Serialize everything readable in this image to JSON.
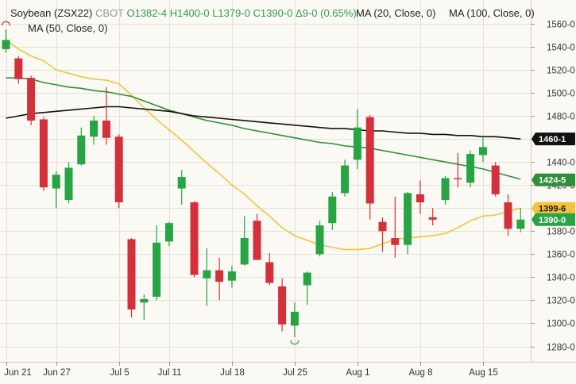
{
  "header": {
    "symbol": "Soybean (ZSX22)",
    "exchange": "CBOT",
    "open": "O1382-4",
    "high": "H1400-0",
    "low": "L1379-0",
    "close": "C1390-0",
    "change": "Δ9-0 (0.65%)",
    "ma20_label": "MA (20, Close, 0)",
    "ma100_label": "MA (100, Close, 0)",
    "ma50_label": "MA (50, Close, 0)"
  },
  "colors": {
    "up": "#27a444",
    "down": "#d3303a",
    "ma20": "#f2c43c",
    "ma50": "#2f8f3a",
    "ma100": "#111111",
    "grid": "#e3e0d8",
    "background": "#fbf9f4"
  },
  "chart_data": {
    "type": "candlestick",
    "y_ticks": [
      "1560-0",
      "1540-0",
      "1520-0",
      "1500-0",
      "1480-0",
      "1460-0",
      "1440-0",
      "1420-0",
      "1400-0",
      "1380-0",
      "1360-0",
      "1340-0",
      "1320-0",
      "1300-0",
      "1280-0"
    ],
    "y_tick_values": [
      1560,
      1540,
      1520,
      1500,
      1480,
      1460,
      1440,
      1420,
      1400,
      1380,
      1360,
      1340,
      1320,
      1300,
      1280
    ],
    "ylim": [
      1268,
      1578
    ],
    "x_labels": [
      {
        "label": "Jun 21",
        "index": 0
      },
      {
        "label": "Jun 27",
        "index": 4
      },
      {
        "label": "Jul 5",
        "index": 9
      },
      {
        "label": "Jul 11",
        "index": 13
      },
      {
        "label": "Jul 18",
        "index": 18
      },
      {
        "label": "Jul 25",
        "index": 23
      },
      {
        "label": "Aug 1",
        "index": 28
      },
      {
        "label": "Aug 8",
        "index": 33
      },
      {
        "label": "Aug 15",
        "index": 38
      }
    ],
    "candles": [
      {
        "o": 1538,
        "h": 1555,
        "l": 1535,
        "c": 1546
      },
      {
        "o": 1530,
        "h": 1532,
        "l": 1508,
        "c": 1512
      },
      {
        "o": 1513,
        "h": 1515,
        "l": 1472,
        "c": 1476
      },
      {
        "o": 1477,
        "h": 1479,
        "l": 1415,
        "c": 1418
      },
      {
        "o": 1417,
        "h": 1432,
        "l": 1400,
        "c": 1429
      },
      {
        "o": 1407,
        "h": 1440,
        "l": 1404,
        "c": 1435
      },
      {
        "o": 1438,
        "h": 1470,
        "l": 1437,
        "c": 1463
      },
      {
        "o": 1462,
        "h": 1480,
        "l": 1455,
        "c": 1476
      },
      {
        "o": 1476,
        "h": 1505,
        "l": 1455,
        "c": 1461
      },
      {
        "o": 1462,
        "h": 1464,
        "l": 1400,
        "c": 1405
      },
      {
        "o": 1373,
        "h": 1374,
        "l": 1305,
        "c": 1312
      },
      {
        "o": 1318,
        "h": 1325,
        "l": 1303,
        "c": 1321
      },
      {
        "o": 1323,
        "h": 1385,
        "l": 1320,
        "c": 1370
      },
      {
        "o": 1371,
        "h": 1388,
        "l": 1367,
        "c": 1387
      },
      {
        "o": 1417,
        "h": 1433,
        "l": 1403,
        "c": 1427
      },
      {
        "o": 1405,
        "h": 1406,
        "l": 1340,
        "c": 1342
      },
      {
        "o": 1339,
        "h": 1365,
        "l": 1315,
        "c": 1346
      },
      {
        "o": 1346,
        "h": 1357,
        "l": 1320,
        "c": 1336
      },
      {
        "o": 1337,
        "h": 1350,
        "l": 1331,
        "c": 1345
      },
      {
        "o": 1351,
        "h": 1393,
        "l": 1350,
        "c": 1374
      },
      {
        "o": 1389,
        "h": 1395,
        "l": 1355,
        "c": 1355
      },
      {
        "o": 1353,
        "h": 1361,
        "l": 1333,
        "c": 1335
      },
      {
        "o": 1332,
        "h": 1339,
        "l": 1293,
        "c": 1299
      },
      {
        "o": 1298,
        "h": 1318,
        "l": 1288,
        "c": 1310
      },
      {
        "o": 1333,
        "h": 1345,
        "l": 1316,
        "c": 1344
      },
      {
        "o": 1360,
        "h": 1389,
        "l": 1358,
        "c": 1385
      },
      {
        "o": 1387,
        "h": 1414,
        "l": 1381,
        "c": 1410
      },
      {
        "o": 1413,
        "h": 1442,
        "l": 1410,
        "c": 1437
      },
      {
        "o": 1442,
        "h": 1486,
        "l": 1434,
        "c": 1470
      },
      {
        "o": 1479,
        "h": 1481,
        "l": 1390,
        "c": 1404
      },
      {
        "o": 1388,
        "h": 1392,
        "l": 1362,
        "c": 1380
      },
      {
        "o": 1374,
        "h": 1410,
        "l": 1357,
        "c": 1368
      },
      {
        "o": 1368,
        "h": 1414,
        "l": 1360,
        "c": 1413
      },
      {
        "o": 1412,
        "h": 1424,
        "l": 1395,
        "c": 1405
      },
      {
        "o": 1392,
        "h": 1400,
        "l": 1385,
        "c": 1390
      },
      {
        "o": 1407,
        "h": 1428,
        "l": 1403,
        "c": 1426
      },
      {
        "o": 1426,
        "h": 1448,
        "l": 1418,
        "c": 1425
      },
      {
        "o": 1422,
        "h": 1450,
        "l": 1418,
        "c": 1447
      },
      {
        "o": 1446,
        "h": 1461,
        "l": 1440,
        "c": 1453
      },
      {
        "o": 1437,
        "h": 1440,
        "l": 1410,
        "c": 1412
      },
      {
        "o": 1405,
        "h": 1412,
        "l": 1376,
        "c": 1382
      },
      {
        "o": 1382,
        "h": 1400,
        "l": 1379,
        "c": 1390
      }
    ],
    "series": [
      {
        "name": "MA (20, Close, 0)",
        "color_key": "ma20",
        "values": [
          1546,
          1538,
          1532,
          1528,
          1520,
          1517,
          1514,
          1512,
          1511,
          1508,
          1498,
          1487,
          1477,
          1468,
          1459,
          1449,
          1439,
          1430,
          1420,
          1412,
          1402,
          1393,
          1383,
          1376,
          1372,
          1368,
          1366,
          1364,
          1364,
          1365,
          1369,
          1373,
          1374,
          1375,
          1376,
          1378,
          1383,
          1389,
          1393,
          1394,
          1397,
          1400
        ]
      },
      {
        "name": "MA (50, Close, 0)",
        "color_key": "ma50",
        "values": [
          1513,
          1513,
          1512,
          1509,
          1507,
          1505,
          1504,
          1502,
          1501,
          1499,
          1497,
          1493,
          1489,
          1485,
          1482,
          1479,
          1476,
          1474,
          1472,
          1469,
          1467,
          1465,
          1463,
          1461,
          1459,
          1457,
          1456,
          1454,
          1453,
          1452,
          1450,
          1448,
          1446,
          1444,
          1442,
          1440,
          1438,
          1436,
          1434,
          1431,
          1428,
          1425
        ]
      },
      {
        "name": "MA (100, Close, 0)",
        "color_key": "ma100",
        "values": [
          1478,
          1480,
          1482,
          1483,
          1484,
          1485,
          1486,
          1487,
          1488,
          1488,
          1487,
          1486,
          1485,
          1484,
          1482,
          1480,
          1479,
          1478,
          1477,
          1476,
          1475,
          1474,
          1473,
          1472,
          1471,
          1470,
          1469,
          1469,
          1468,
          1467,
          1467,
          1466,
          1465,
          1465,
          1464,
          1464,
          1463,
          1463,
          1462,
          1462,
          1461,
          1460
        ]
      }
    ],
    "last_value_tags": [
      {
        "label": "1460-1",
        "value": 1460,
        "color_key": "ma100"
      },
      {
        "label": "1424-5",
        "value": 1424.5,
        "color_key": "ma50"
      },
      {
        "label": "1399-6",
        "value": 1399.75,
        "color_key": "ma20"
      },
      {
        "label": "1390-0",
        "value": 1390,
        "color_key": "up"
      }
    ],
    "markers": [
      {
        "type": "cap",
        "index": 0,
        "position": "above"
      },
      {
        "type": "cup",
        "index": 23,
        "position": "below"
      }
    ],
    "grid": true
  }
}
